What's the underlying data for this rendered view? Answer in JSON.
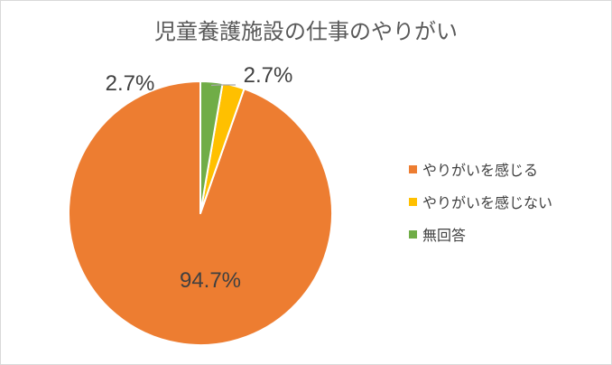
{
  "chart_data": {
    "type": "pie",
    "title": "児童養護施設の仕事のやりがい",
    "categories": [
      "やりがいを感じる",
      "やりがいを感じない",
      "無回答"
    ],
    "values": [
      94.7,
      2.7,
      2.7
    ],
    "value_labels": [
      "94.7%",
      "2.7%",
      "2.7%"
    ],
    "colors": [
      "#ED7D31",
      "#FFC000",
      "#70AD47"
    ],
    "legend_position": "right",
    "start_angle": "12 o'clock",
    "direction": "counterclockwise"
  }
}
